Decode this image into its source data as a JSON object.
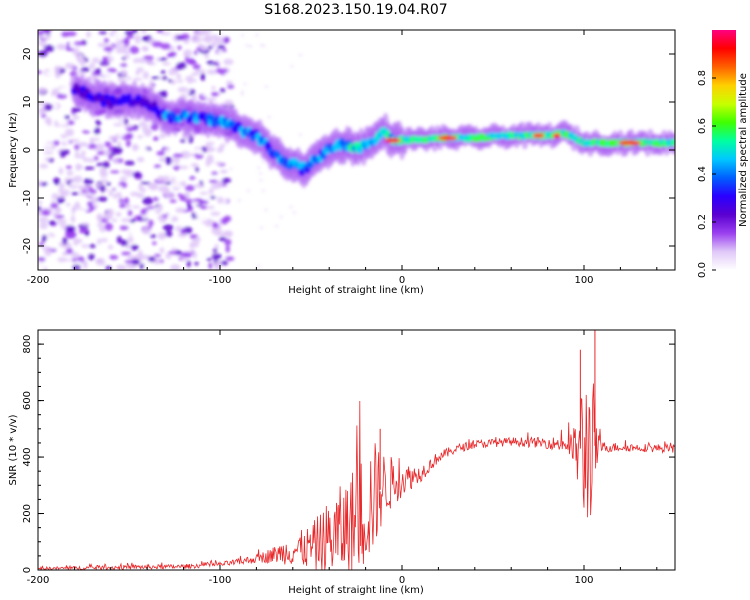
{
  "page_title": "S168.2023.150.19.04.R07",
  "chart_data": [
    {
      "type": "heatmap",
      "title": "S168.2023.150.19.04.R07",
      "xlabel": "Height of straight line (km)",
      "ylabel": "Frequency (Hz)",
      "xlim": [
        -200,
        150
      ],
      "ylim": [
        -25,
        25
      ],
      "xticks": [
        -200,
        -100,
        0,
        100
      ],
      "yticks": [
        -20,
        -10,
        0,
        10,
        20
      ],
      "ridge_frequency_hz": {
        "x": [
          -180,
          -170,
          -160,
          -150,
          -140,
          -130,
          -120,
          -110,
          -100,
          -90,
          -80,
          -70,
          -65,
          -60,
          -55,
          -50,
          -45,
          -40,
          -35,
          -30,
          -25,
          -20,
          -15,
          -10,
          -5,
          0,
          20,
          40,
          60,
          80,
          90,
          95,
          100,
          110,
          130,
          150
        ],
        "y": [
          13,
          11,
          10,
          10.5,
          10,
          7,
          7,
          6.5,
          6,
          4.5,
          3,
          -1,
          -2,
          -3,
          -4,
          -3,
          -1,
          0,
          1,
          1,
          0.5,
          1,
          2,
          4,
          2,
          2,
          2.5,
          2.5,
          3,
          3,
          3.5,
          2.5,
          1.5,
          1.5,
          1.5,
          1.5
        ]
      },
      "noise_region_x": [
        -200,
        -100
      ],
      "colorbar": {
        "label": "Normalized spectral amplitude",
        "min": 0.0,
        "max": 1.0,
        "ticks": [
          "0.0",
          "0.2",
          "0.4",
          "0.6",
          "0.8"
        ],
        "colors": [
          "#ffffff",
          "#e0c8f8",
          "#9a40f0",
          "#5a00d0",
          "#2a00ff",
          "#0060ff",
          "#00c8ff",
          "#00ffa0",
          "#40ff00",
          "#c8ff00",
          "#ffd000",
          "#ff6000",
          "#ff0000",
          "#ff0080"
        ]
      }
    },
    {
      "type": "line",
      "title": "",
      "xlabel": "Height of straight line (km)",
      "ylabel": "SNR (10 * v/v)",
      "xlim": [
        -200,
        150
      ],
      "ylim": [
        0,
        850
      ],
      "xticks": [
        -200,
        -100,
        0,
        100
      ],
      "yticks": [
        0,
        200,
        400,
        600,
        800
      ],
      "series_color": "#e8282a",
      "envelope": {
        "x": [
          -200,
          -150,
          -120,
          -100,
          -90,
          -80,
          -70,
          -60,
          -50,
          -40,
          -30,
          -20,
          -15,
          -10,
          0,
          10,
          20,
          30,
          40,
          60,
          80,
          90,
          95,
          100,
          105,
          108,
          110,
          120,
          150
        ],
        "baseline": [
          5,
          10,
          12,
          20,
          28,
          40,
          55,
          70,
          80,
          110,
          150,
          220,
          260,
          300,
          320,
          340,
          400,
          430,
          445,
          455,
          450,
          445,
          430,
          430,
          440,
          440,
          435,
          435,
          430
        ],
        "spread": [
          5,
          8,
          8,
          8,
          12,
          15,
          30,
          55,
          80,
          140,
          180,
          220,
          200,
          120,
          60,
          30,
          20,
          15,
          15,
          15,
          20,
          30,
          80,
          300,
          250,
          40,
          20,
          15,
          15
        ]
      },
      "peaks": [
        {
          "x": 106,
          "y": 850
        },
        {
          "x": 98,
          "y": 780
        },
        {
          "x": -12,
          "y": 500
        }
      ]
    }
  ]
}
